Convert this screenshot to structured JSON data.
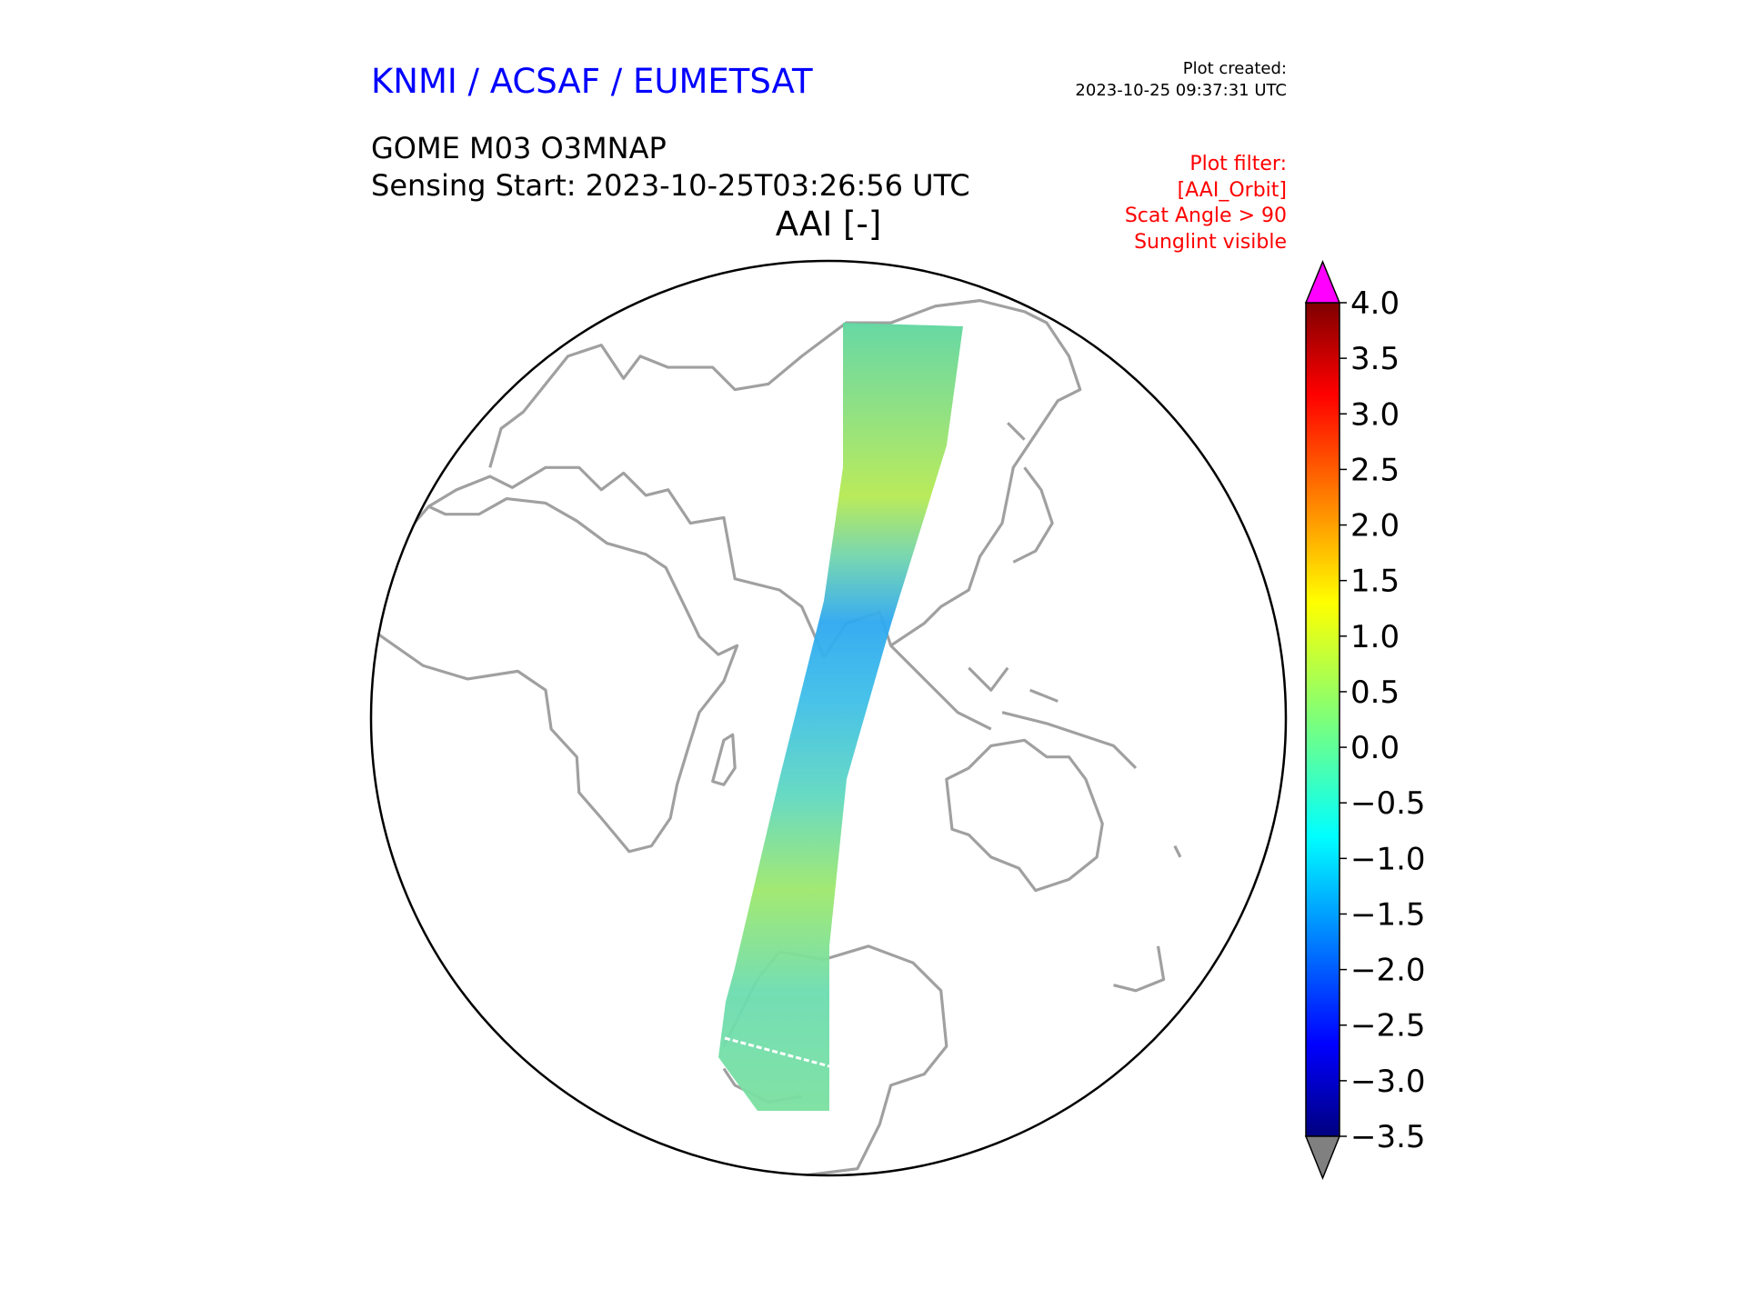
{
  "header": {
    "organization": "KNMI / ACSAF / EUMETSAT",
    "created_label": "Plot created:",
    "created_time": "2023-10-25 09:37:31 UTC",
    "product": "GOME M03 O3MNAP",
    "sensing_start": "Sensing Start: 2023-10-25T03:26:56 UTC"
  },
  "filter": {
    "lines": [
      "Plot filter:",
      "[AAI_Orbit]",
      "Scat Angle > 90",
      "Sunglint visible"
    ]
  },
  "chart_data": {
    "type": "heatmap",
    "title": "AAI [-]",
    "projection": "orthographic globe",
    "colormap": "jet",
    "colorbar": {
      "min": -3.5,
      "max": 4.0,
      "ticks": [
        "4.0",
        "3.5",
        "3.0",
        "2.5",
        "2.0",
        "1.5",
        "1.0",
        "0.5",
        "0.0",
        "−0.5",
        "−1.0",
        "−1.5",
        "−2.0",
        "−2.5",
        "−3.0",
        "−3.5"
      ],
      "extend_over_color": "#ff00ff",
      "extend_under_color": "#808080"
    },
    "colors": {
      "coastline": "#a0a0a0",
      "globe_edge": "#000000"
    }
  }
}
